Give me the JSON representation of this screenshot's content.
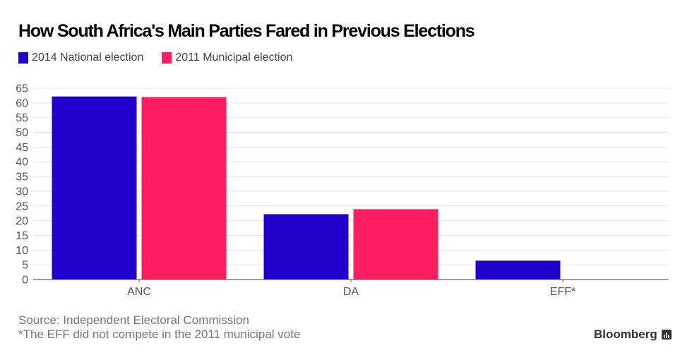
{
  "chart_data": {
    "type": "bar",
    "title": "How South Africa's Main Parties Fared in Previous Elections",
    "categories": [
      "ANC",
      "DA",
      "EFF*"
    ],
    "series": [
      {
        "name": "2014 National election",
        "color": "#2200cc",
        "values": [
          62.2,
          22.2,
          6.4
        ]
      },
      {
        "name": "2011 Municipal election",
        "color": "#ff1f60",
        "values": [
          62.0,
          23.9,
          null
        ]
      }
    ],
    "xlabel": "",
    "ylabel": "",
    "ylim": [
      0,
      65
    ],
    "yticks": [
      0,
      5,
      10,
      15,
      20,
      25,
      30,
      35,
      40,
      45,
      50,
      55,
      60,
      65
    ],
    "grid": true,
    "legend": "top-left"
  },
  "footer": {
    "source": "Source: Independent Electoral Commission",
    "note": "*The EFF did not compete in the 2011 municipal vote",
    "brand": "Bloomberg",
    "brand_icon": "bloomberg-chart-icon"
  }
}
